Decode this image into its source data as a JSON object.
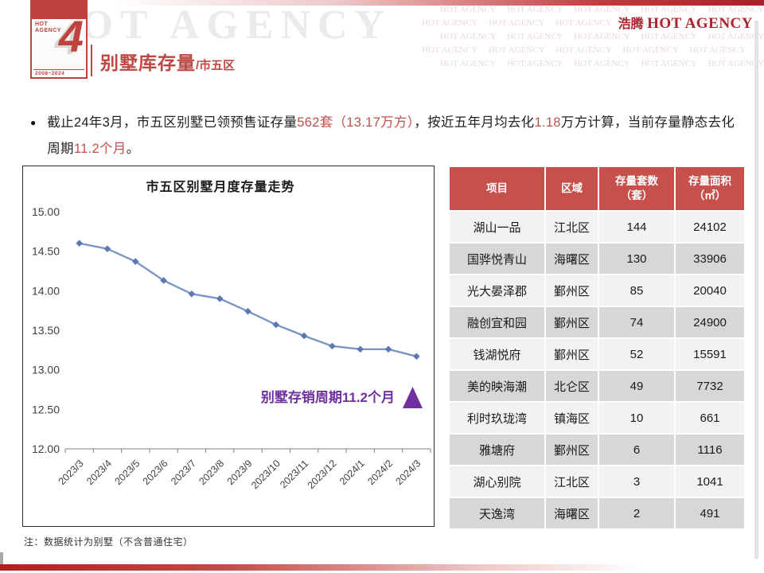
{
  "brand": {
    "watermark": "HOT AGENCY",
    "logo_small_line1": "HOT",
    "logo_small_line2": "AGENCY",
    "logo_number": "4",
    "logo_years": "2008~2024",
    "header_logo_cn": "浩腾",
    "header_logo_en": "HOT AGENCY",
    "brand_red": "#c0504d",
    "purple": "#7030a0"
  },
  "page": {
    "title": "别墅库存量",
    "title_suffix": "/市五区",
    "footnote": "注：数据统计为别墅（不含普通住宅）"
  },
  "bullet": {
    "segments": [
      {
        "text": "截止24年3月，市五区别墅已领预售证存量",
        "red": false
      },
      {
        "text": "562套（13.17万方）",
        "red": true
      },
      {
        "text": "，按近五年月均去化",
        "red": false
      },
      {
        "text": "1.18",
        "red": true
      },
      {
        "text": "万方计算，当前存量静态去化周期",
        "red": false
      },
      {
        "text": "11.2个月",
        "red": true
      },
      {
        "text": "。",
        "red": false
      }
    ]
  },
  "chart_data": {
    "type": "line",
    "title": "市五区别墅月度存量走势",
    "categories": [
      "2023/3",
      "2023/4",
      "2023/5",
      "2023/6",
      "2023/7",
      "2023/8",
      "2023/9",
      "2023/10",
      "2023/11",
      "2023/12",
      "2024/1",
      "2024/2",
      "2024/3"
    ],
    "values": [
      14.6,
      14.53,
      14.37,
      14.13,
      13.96,
      13.9,
      13.74,
      13.57,
      13.43,
      13.3,
      13.26,
      13.26,
      13.17
    ],
    "unit": "万方",
    "ylim": [
      12.0,
      15.0
    ],
    "ytick_labels": [
      "15.00",
      "14.50",
      "14.00",
      "13.50",
      "13.00",
      "12.50",
      "12.00"
    ],
    "grid": false,
    "legend": "none",
    "annotation": "别墅存销周期11.2个月",
    "line_color": "#7b96c5",
    "marker_color": "#5b78b4",
    "annotation_color": "#7030a0"
  },
  "table": {
    "columns": [
      "项目",
      "区域",
      "存量套数\n（套）",
      "存量面积\n（㎡）"
    ],
    "rows": [
      [
        "湖山一品",
        "江北区",
        "144",
        "24102"
      ],
      [
        "国骅悦青山",
        "海曙区",
        "130",
        "33906"
      ],
      [
        "光大晏泽郡",
        "鄞州区",
        "85",
        "20040"
      ],
      [
        "融创宜和园",
        "鄞州区",
        "74",
        "24900"
      ],
      [
        "钱湖悦府",
        "鄞州区",
        "52",
        "15591"
      ],
      [
        "美的映海潮",
        "北仑区",
        "49",
        "7732"
      ],
      [
        "利时玖珑湾",
        "镇海区",
        "10",
        "661"
      ],
      [
        "雅塘府",
        "鄞州区",
        "6",
        "1116"
      ],
      [
        "湖心别院",
        "江北区",
        "3",
        "1041"
      ],
      [
        "天逸湾",
        "海曙区",
        "2",
        "491"
      ]
    ]
  }
}
